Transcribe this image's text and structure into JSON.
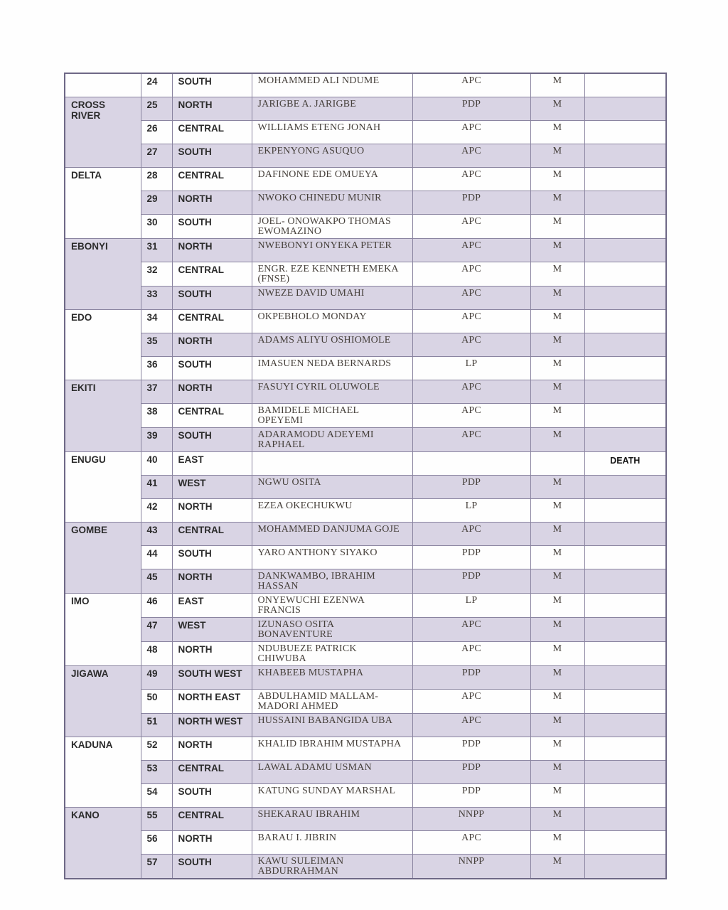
{
  "document": {
    "type": "scanned-table-page",
    "visible_note": "DEATH",
    "colors": {
      "row_shaded": "#d9d4e4",
      "row_white": "#ffffff",
      "grid_border": "#8a84a0",
      "outer_border": "#6e6886",
      "sans_text": "#2b2b2b",
      "serif_text": "#453f3a",
      "page_background": "#fefefe"
    }
  },
  "table": {
    "columns": [
      "state",
      "serial_number",
      "district",
      "senator_name",
      "party",
      "gender",
      "note"
    ],
    "party_values_seen": [
      "APC",
      "PDP",
      "LP",
      "NNPP"
    ],
    "rows": [
      {
        "no": "24",
        "district": "SOUTH",
        "name": "MOHAMMED ALI NDUME",
        "party": "APC",
        "gender": "M",
        "note": "",
        "shaded": false,
        "state": {
          "label": "",
          "span": 1,
          "shaded": false
        }
      },
      {
        "no": "25",
        "district": "NORTH",
        "name": "JARIGBE A. JARIGBE",
        "party": "PDP",
        "gender": "M",
        "note": "",
        "shaded": true,
        "state": {
          "label": "CROSS RIVER",
          "span": 3,
          "shaded": true
        }
      },
      {
        "no": "26",
        "district": "CENTRAL",
        "name": "WILLIAMS ETENG JONAH",
        "party": "APC",
        "gender": "M",
        "note": "",
        "shaded": false
      },
      {
        "no": "27",
        "district": "SOUTH",
        "name": "EKPENYONG ASUQUO",
        "party": "APC",
        "gender": "M",
        "note": "",
        "shaded": true
      },
      {
        "no": "28",
        "district": "CENTRAL",
        "name": "DAFINONE EDE OMUEYA",
        "party": "APC",
        "gender": "M",
        "note": "",
        "shaded": false,
        "state": {
          "label": "DELTA",
          "span": 3,
          "shaded": false
        }
      },
      {
        "no": "29",
        "district": "NORTH",
        "name": "NWOKO CHINEDU MUNIR",
        "party": "PDP",
        "gender": "M",
        "note": "",
        "shaded": true
      },
      {
        "no": "30",
        "district": "SOUTH",
        "name": "JOEL- ONOWAKPO THOMAS EWOMAZINO",
        "party": "APC",
        "gender": "M",
        "note": "",
        "shaded": false
      },
      {
        "no": "31",
        "district": "NORTH",
        "name": "NWEBONYI ONYEKA PETER",
        "party": "APC",
        "gender": "M",
        "note": "",
        "shaded": true,
        "state": {
          "label": "EBONYI",
          "span": 3,
          "shaded": true
        }
      },
      {
        "no": "32",
        "district": "CENTRAL",
        "name": "ENGR. EZE KENNETH EMEKA (FNSE)",
        "party": "APC",
        "gender": "M",
        "note": "",
        "shaded": false
      },
      {
        "no": "33",
        "district": "SOUTH",
        "name": "NWEZE DAVID UMAHI",
        "party": "APC",
        "gender": "M",
        "note": "",
        "shaded": true
      },
      {
        "no": "34",
        "district": "CENTRAL",
        "name": "OKPEBHOLO MONDAY",
        "party": "APC",
        "gender": "M",
        "note": "",
        "shaded": false,
        "state": {
          "label": "EDO",
          "span": 3,
          "shaded": false
        }
      },
      {
        "no": "35",
        "district": "NORTH",
        "name": "ADAMS ALIYU OSHIOMOLE",
        "party": "APC",
        "gender": "M",
        "note": "",
        "shaded": true
      },
      {
        "no": "36",
        "district": "SOUTH",
        "name": "IMASUEN NEDA BERNARDS",
        "party": "LP",
        "gender": "M",
        "note": "",
        "shaded": false
      },
      {
        "no": "37",
        "district": "NORTH",
        "name": "FASUYI CYRIL OLUWOLE",
        "party": "APC",
        "gender": "M",
        "note": "",
        "shaded": true,
        "state": {
          "label": "EKITI",
          "span": 3,
          "shaded": true
        }
      },
      {
        "no": "38",
        "district": "CENTRAL",
        "name": "BAMIDELE MICHAEL OPEYEMI",
        "party": "APC",
        "gender": "M",
        "note": "",
        "shaded": false
      },
      {
        "no": "39",
        "district": "SOUTH",
        "name": "ADARAMODU ADEYEMI RAPHAEL",
        "party": "APC",
        "gender": "M",
        "note": "",
        "shaded": true
      },
      {
        "no": "40",
        "district": "EAST",
        "name": "",
        "party": "",
        "gender": "",
        "note": "DEATH",
        "shaded": false,
        "state": {
          "label": "ENUGU",
          "span": 3,
          "shaded": false
        }
      },
      {
        "no": "41",
        "district": "WEST",
        "name": "NGWU OSITA",
        "party": "PDP",
        "gender": "M",
        "note": "",
        "shaded": true
      },
      {
        "no": "42",
        "district": "NORTH",
        "name": "EZEA OKECHUKWU",
        "party": "LP",
        "gender": "M",
        "note": "",
        "shaded": false
      },
      {
        "no": "43",
        "district": "CENTRAL",
        "name": "MOHAMMED DANJUMA GOJE",
        "party": "APC",
        "gender": "M",
        "note": "",
        "shaded": true,
        "state": {
          "label": "GOMBE",
          "span": 3,
          "shaded": true
        }
      },
      {
        "no": "44",
        "district": "SOUTH",
        "name": "YARO ANTHONY SIYAKO",
        "party": "PDP",
        "gender": "M",
        "note": "",
        "shaded": false
      },
      {
        "no": "45",
        "district": "NORTH",
        "name": "DANKWAMBO, IBRAHIM HASSAN",
        "party": "PDP",
        "gender": "M",
        "note": "",
        "shaded": true
      },
      {
        "no": "46",
        "district": "EAST",
        "name": "ONYEWUCHI EZENWA FRANCIS",
        "party": "LP",
        "gender": "M",
        "note": "",
        "shaded": false,
        "state": {
          "label": "IMO",
          "span": 3,
          "shaded": false
        }
      },
      {
        "no": "47",
        "district": "WEST",
        "name": "IZUNASO OSITA BONAVENTURE",
        "party": "APC",
        "gender": "M",
        "note": "",
        "shaded": true
      },
      {
        "no": "48",
        "district": "NORTH",
        "name": "NDUBUEZE PATRICK CHIWUBA",
        "party": "APC",
        "gender": "M",
        "note": "",
        "shaded": false
      },
      {
        "no": "49",
        "district": "SOUTH WEST",
        "name": "KHABEEB MUSTAPHA",
        "party": "PDP",
        "gender": "M",
        "note": "",
        "shaded": true,
        "state": {
          "label": "JIGAWA",
          "span": 3,
          "shaded": true
        }
      },
      {
        "no": "50",
        "district": "NORTH EAST",
        "name": "ABDULHAMID MALLAM-MADORI AHMED",
        "party": "APC",
        "gender": "M",
        "note": "",
        "shaded": false
      },
      {
        "no": "51",
        "district": "NORTH WEST",
        "name": "HUSSAINI BABANGIDA UBA",
        "party": "APC",
        "gender": "M",
        "note": "",
        "shaded": true
      },
      {
        "no": "52",
        "district": "NORTH",
        "name": "KHALID IBRAHIM MUSTAPHA",
        "party": "PDP",
        "gender": "M",
        "note": "",
        "shaded": false,
        "state": {
          "label": "KADUNA",
          "span": 3,
          "shaded": false
        }
      },
      {
        "no": "53",
        "district": "CENTRAL",
        "name": "LAWAL ADAMU USMAN",
        "party": "PDP",
        "gender": "M",
        "note": "",
        "shaded": true
      },
      {
        "no": "54",
        "district": "SOUTH",
        "name": "KATUNG SUNDAY MARSHAL",
        "party": "PDP",
        "gender": "M",
        "note": "",
        "shaded": false
      },
      {
        "no": "55",
        "district": "CENTRAL",
        "name": "SHEKARAU IBRAHIM",
        "party": "NNPP",
        "gender": "M",
        "note": "",
        "shaded": true,
        "state": {
          "label": "KANO",
          "span": 3,
          "shaded": true
        }
      },
      {
        "no": "56",
        "district": "NORTH",
        "name": "BARAU I. JIBRIN",
        "party": "APC",
        "gender": "M",
        "note": "",
        "shaded": false
      },
      {
        "no": "57",
        "district": "SOUTH",
        "name": "KAWU SULEIMAN ABDURRAHMAN",
        "party": "NNPP",
        "gender": "M",
        "note": "",
        "shaded": true
      }
    ]
  }
}
